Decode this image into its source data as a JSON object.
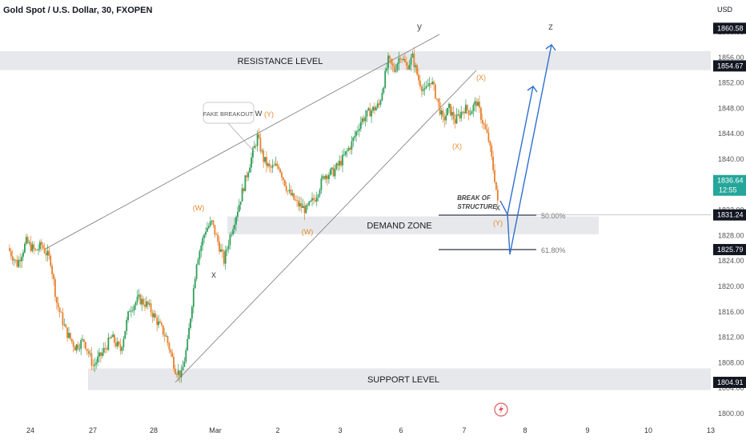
{
  "header": {
    "title": "Gold Spot / U.S. Dollar, 30, FXOPEN",
    "currency": "USD"
  },
  "chart_data": {
    "type": "candlestick",
    "title": "Gold Spot / U.S. Dollar, 30, FXOPEN",
    "ylabel": "USD",
    "ylim": [
      1799,
      1863
    ],
    "y_ticks": [
      "1800.00",
      "1804.00",
      "1808.00",
      "1812.00",
      "1816.00",
      "1820.00",
      "1824.00",
      "1828.00",
      "1832.00",
      "1836.00",
      "1840.00",
      "1844.00",
      "1848.00",
      "1852.00",
      "1856.00",
      "1860.00"
    ],
    "x_tick_labels": [
      "24",
      "27",
      "28",
      "Mar",
      "2",
      "3",
      "6",
      "7",
      "8",
      "9",
      "10",
      "13"
    ],
    "price_labels": [
      {
        "value": 1860.58,
        "text": "1860.58",
        "style": "dark"
      },
      {
        "value": 1854.67,
        "text": "1854.67",
        "style": "dark"
      },
      {
        "value": 1836.64,
        "text": "1836.64",
        "sub": "12:55",
        "style": "teal"
      },
      {
        "value": 1831.24,
        "text": "1831.24",
        "style": "dark"
      },
      {
        "value": 1825.79,
        "text": "1825.79",
        "style": "dark"
      },
      {
        "value": 1804.91,
        "text": "1804.91",
        "style": "dark"
      }
    ],
    "zones": [
      {
        "name": "RESISTANCE LEVEL",
        "top": 1857.0,
        "bottom": 1854.0
      },
      {
        "name": "DEMAND ZONE",
        "top": 1831.0,
        "bottom": 1828.2
      },
      {
        "name": "SUPPORT LEVEL",
        "top": 1807.1,
        "bottom": 1803.7
      }
    ],
    "fib_levels": [
      {
        "label": "50.00%",
        "value": 1831.2
      },
      {
        "label": "61.80%",
        "value": 1825.8
      }
    ],
    "wave_labels": [
      {
        "text": "y",
        "color": "#555555"
      },
      {
        "text": "z",
        "color": "#555555"
      },
      {
        "text": "w",
        "color": "#555555"
      },
      {
        "text": "(Y)",
        "color": "#e8892d"
      },
      {
        "text": "(W)",
        "color": "#e8892d"
      },
      {
        "text": "(X)",
        "color": "#e8892d"
      },
      {
        "text": "x",
        "color": "#555555"
      },
      {
        "text": "(X)",
        "color": "#e8892d"
      },
      {
        "text": "(W)",
        "color": "#e8892d"
      },
      {
        "text": "x",
        "color": "#555555"
      },
      {
        "text": "(Y)",
        "color": "#e8892d"
      }
    ],
    "annotations": [
      "FAKE BREAKOUT",
      "BREAK OF",
      "STRUCTURE"
    ],
    "price_path": [
      {
        "t": 0,
        "p": 1826.0
      },
      {
        "t": 1.5,
        "p": 1823.5
      },
      {
        "t": 3,
        "p": 1827.0
      },
      {
        "t": 4.5,
        "p": 1825.5
      },
      {
        "t": 5.5,
        "p": 1826.5
      },
      {
        "t": 7,
        "p": 1824.0
      },
      {
        "t": 8,
        "p": 1817.5
      },
      {
        "t": 9.5,
        "p": 1813.0
      },
      {
        "t": 11,
        "p": 1810.5
      },
      {
        "t": 12.5,
        "p": 1811.5
      },
      {
        "t": 14,
        "p": 1807.5
      },
      {
        "t": 15.5,
        "p": 1809.5
      },
      {
        "t": 17,
        "p": 1812.0
      },
      {
        "t": 18.5,
        "p": 1810.0
      },
      {
        "t": 20,
        "p": 1816.5
      },
      {
        "t": 21.5,
        "p": 1818.0
      },
      {
        "t": 23,
        "p": 1817.0
      },
      {
        "t": 24.5,
        "p": 1814.5
      },
      {
        "t": 26,
        "p": 1812.0
      },
      {
        "t": 27.5,
        "p": 1807.0
      },
      {
        "t": 28.5,
        "p": 1806.0
      },
      {
        "t": 29.5,
        "p": 1811.0
      },
      {
        "t": 31,
        "p": 1824.0
      },
      {
        "t": 32.5,
        "p": 1829.0
      },
      {
        "t": 33.5,
        "p": 1830.0
      },
      {
        "t": 34.5,
        "p": 1827.0
      },
      {
        "t": 35.5,
        "p": 1824.0
      },
      {
        "t": 36.5,
        "p": 1828.0
      },
      {
        "t": 38,
        "p": 1833.0
      },
      {
        "t": 39.5,
        "p": 1838.5
      },
      {
        "t": 41,
        "p": 1843.5
      },
      {
        "t": 42,
        "p": 1840.0
      },
      {
        "t": 43,
        "p": 1838.5
      },
      {
        "t": 44.5,
        "p": 1839.0
      },
      {
        "t": 46,
        "p": 1835.0
      },
      {
        "t": 47.5,
        "p": 1833.0
      },
      {
        "t": 49,
        "p": 1832.0
      },
      {
        "t": 50.5,
        "p": 1834.0
      },
      {
        "t": 52,
        "p": 1837.5
      },
      {
        "t": 53.5,
        "p": 1838.0
      },
      {
        "t": 55,
        "p": 1840.0
      },
      {
        "t": 56.5,
        "p": 1842.5
      },
      {
        "t": 58,
        "p": 1846.0
      },
      {
        "t": 59.5,
        "p": 1847.5
      },
      {
        "t": 61,
        "p": 1848.5
      },
      {
        "t": 62.5,
        "p": 1855.5
      },
      {
        "t": 63.5,
        "p": 1854.0
      },
      {
        "t": 64.5,
        "p": 1856.5
      },
      {
        "t": 65.5,
        "p": 1854.5
      },
      {
        "t": 66.5,
        "p": 1856.0
      },
      {
        "t": 67.5,
        "p": 1852.5
      },
      {
        "t": 68.5,
        "p": 1850.5
      },
      {
        "t": 69.5,
        "p": 1852.5
      },
      {
        "t": 70.5,
        "p": 1849.5
      },
      {
        "t": 71.5,
        "p": 1846.0
      },
      {
        "t": 72.5,
        "p": 1848.0
      },
      {
        "t": 73.5,
        "p": 1846.0
      },
      {
        "t": 75,
        "p": 1848.0
      },
      {
        "t": 76,
        "p": 1847.5
      },
      {
        "t": 77,
        "p": 1849.0
      },
      {
        "t": 78,
        "p": 1846.0
      },
      {
        "t": 79,
        "p": 1843.0
      },
      {
        "t": 80,
        "p": 1837.0
      },
      {
        "t": 80.5,
        "p": 1833.5
      }
    ]
  }
}
